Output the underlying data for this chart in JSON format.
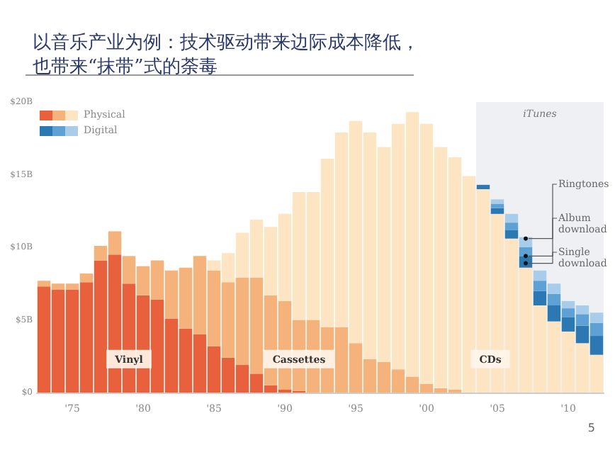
{
  "chart_data": {
    "type": "bar",
    "title": "以音乐产业为例：技术驱动带来边际成本降低，也带来“抹带”式的荼毒",
    "stacked": true,
    "x": [
      1973,
      1974,
      1975,
      1976,
      1977,
      1978,
      1979,
      1980,
      1981,
      1982,
      1983,
      1984,
      1985,
      1986,
      1987,
      1988,
      1989,
      1990,
      1991,
      1992,
      1993,
      1994,
      1995,
      1996,
      1997,
      1998,
      1999,
      2000,
      2001,
      2002,
      2003,
      2004,
      2005,
      2006,
      2007,
      2008,
      2009,
      2010,
      2011,
      2012
    ],
    "xlim": [
      1972.5,
      2012.5
    ],
    "xticks": [
      {
        "value": 1975,
        "label": "'75"
      },
      {
        "value": 1980,
        "label": "'80"
      },
      {
        "value": 1985,
        "label": "'85"
      },
      {
        "value": 1990,
        "label": "'90"
      },
      {
        "value": 1995,
        "label": "'95"
      },
      {
        "value": 2000,
        "label": "'00"
      },
      {
        "value": 2005,
        "label": "'05"
      },
      {
        "value": 2010,
        "label": "'10"
      }
    ],
    "ylim": [
      0,
      20
    ],
    "yticks": [
      {
        "value": 0,
        "label": "$0"
      },
      {
        "value": 5,
        "label": "$5B"
      },
      {
        "value": 10,
        "label": "$10B"
      },
      {
        "value": 15,
        "label": "$15B"
      },
      {
        "value": 20,
        "label": "$20B"
      }
    ],
    "series": [
      {
        "color": "#e8603c",
        "values": [
          7.3,
          7.1,
          7.1,
          7.6,
          9.1,
          9.5,
          7.5,
          6.7,
          6.4,
          5.1,
          4.4,
          4.0,
          3.2,
          2.4,
          1.9,
          1.3,
          0.5,
          0.2,
          0.1,
          0,
          0,
          0,
          0,
          0,
          0,
          0,
          0,
          0,
          0,
          0,
          0,
          0,
          0,
          0,
          0,
          0,
          0,
          0,
          0,
          0
        ]
      },
      {
        "color": "#f5b27a",
        "values": [
          0.4,
          0.4,
          0.4,
          0.6,
          1.0,
          1.6,
          1.9,
          2.0,
          2.7,
          3.3,
          4.2,
          5.4,
          5.2,
          5.2,
          6.0,
          6.6,
          6.2,
          6.1,
          4.9,
          5.0,
          4.5,
          4.5,
          3.4,
          2.3,
          2.1,
          1.6,
          1.1,
          0.6,
          0.3,
          0.2,
          0,
          0,
          0,
          0,
          0,
          0,
          0,
          0,
          0,
          0
        ]
      },
      {
        "color": "#fde4c2",
        "values": [
          0,
          0,
          0,
          0,
          0,
          0,
          0,
          0,
          0,
          0,
          0,
          0,
          0.7,
          2.0,
          3.1,
          4.0,
          4.7,
          6.0,
          8.8,
          8.8,
          11.6,
          13.4,
          15.3,
          15.6,
          14.8,
          16.9,
          18.2,
          17.9,
          16.6,
          16.0,
          14.9,
          14.0,
          12.3,
          10.6,
          8.6,
          6.0,
          4.9,
          4.2,
          3.4,
          2.6
        ]
      },
      {
        "color": "#2b78b3",
        "values": [
          0,
          0,
          0,
          0,
          0,
          0,
          0,
          0,
          0,
          0,
          0,
          0,
          0,
          0,
          0,
          0,
          0,
          0,
          0,
          0,
          0,
          0,
          0,
          0,
          0,
          0,
          0,
          0,
          0,
          0,
          0,
          0.3,
          0.4,
          0.6,
          0.8,
          1.0,
          1.1,
          1.0,
          1.2,
          1.3
        ]
      },
      {
        "color": "#5ea2d5",
        "values": [
          0,
          0,
          0,
          0,
          0,
          0,
          0,
          0,
          0,
          0,
          0,
          0,
          0,
          0,
          0,
          0,
          0,
          0,
          0,
          0,
          0,
          0,
          0,
          0,
          0,
          0,
          0,
          0,
          0,
          0,
          0,
          0,
          0.3,
          0.5,
          0.6,
          0.7,
          0.8,
          0.6,
          0.8,
          0.9
        ]
      },
      {
        "color": "#a8cdea",
        "values": [
          0,
          0,
          0,
          0,
          0,
          0,
          0,
          0,
          0,
          0,
          0,
          0,
          0,
          0,
          0,
          0,
          0,
          0,
          0,
          0,
          0,
          0,
          0,
          0,
          0,
          0,
          0,
          0,
          0,
          0,
          0,
          0,
          0.3,
          0.6,
          0.7,
          0.7,
          0.7,
          0.5,
          0.6,
          0.7
        ]
      }
    ],
    "bands": [
      {
        "axis": "x",
        "from": 2003.5,
        "to": 2012.5,
        "label": "iTunes",
        "color": "#eef0f3"
      }
    ],
    "annotations": [
      "Physical",
      "Digital",
      {
        "text": "Vinyl",
        "x": 1979,
        "y": 2.3
      },
      {
        "text": "Cassettes",
        "x": 1991,
        "y": 2.3
      },
      {
        "text": "CDs",
        "x": 2004.5,
        "y": 2.3
      },
      {
        "text": "Ringtones",
        "x": 2007,
        "y": 10.6
      },
      {
        "text": "Album download",
        "x": 2007,
        "y": 9.4
      },
      {
        "text": "Single download",
        "x": 2007,
        "y": 8.9
      },
      "5"
    ]
  }
}
